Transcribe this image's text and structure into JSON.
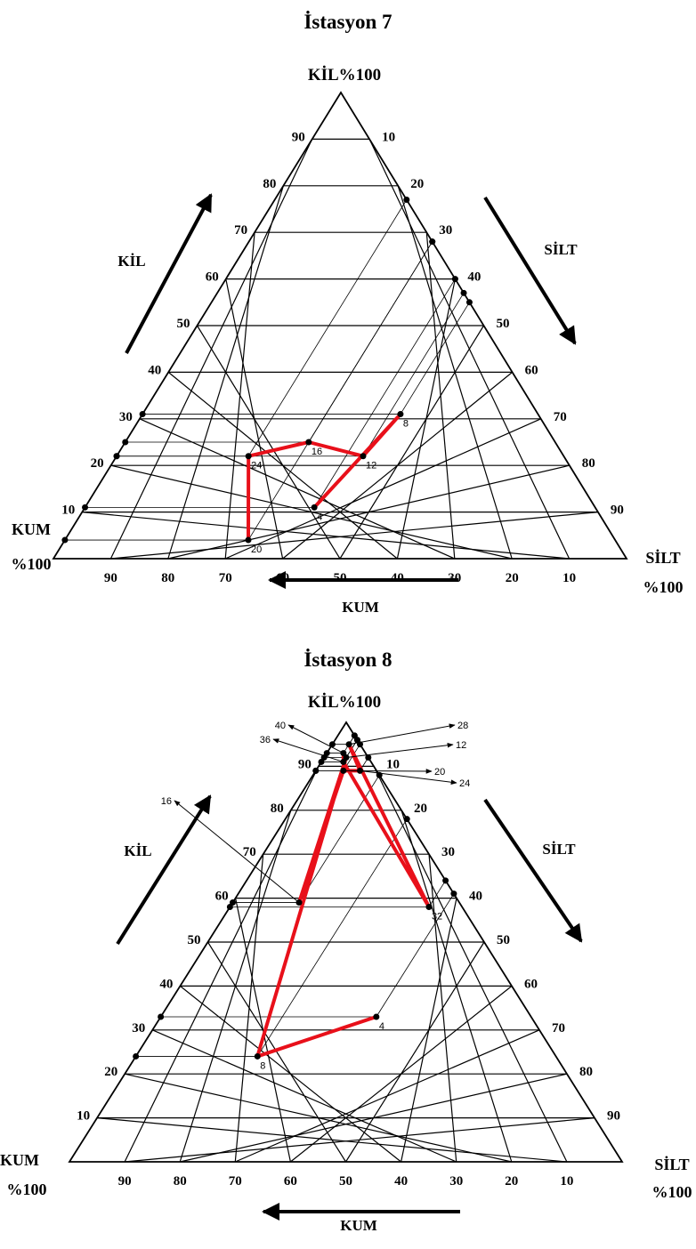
{
  "chart_data": [
    {
      "type": "ternary",
      "title": "İstasyon 7",
      "apex_label": "KİL%100",
      "left_corner_label": [
        "KUM",
        "%100"
      ],
      "right_corner_label": [
        "SİLT",
        "%100"
      ],
      "left_arrow_label": "KİL",
      "right_arrow_label": "SİLT",
      "bottom_arrow_label": "KUM",
      "left_ticks": [
        "90",
        "80",
        "70",
        "60",
        "50",
        "40",
        "30",
        "20",
        "10"
      ],
      "right_ticks": [
        "10",
        "20",
        "30",
        "40",
        "50",
        "60",
        "70",
        "80",
        "90"
      ],
      "bottom_ticks": [
        "90",
        "80",
        "70",
        "60",
        "50",
        "40",
        "30",
        "20",
        "10"
      ],
      "points": [
        {
          "label": "4",
          "kil": 11,
          "silt": 40,
          "kum": 49
        },
        {
          "label": "8",
          "kil": 31,
          "silt": 45,
          "kum": 24
        },
        {
          "label": "12",
          "kil": 22,
          "silt": 43,
          "kum": 35
        },
        {
          "label": "16",
          "kil": 25,
          "silt": 32,
          "kum": 43
        },
        {
          "label": "20",
          "kil": 4,
          "silt": 32,
          "kum": 64
        },
        {
          "label": "24",
          "kil": 22,
          "silt": 23,
          "kum": 55
        }
      ],
      "path_order": [
        "4",
        "8",
        "12",
        "16",
        "24",
        "20"
      ]
    },
    {
      "type": "ternary",
      "title": "İstasyon 8",
      "apex_label": "KİL%100",
      "left_corner_label": [
        "KUM",
        "%100"
      ],
      "right_corner_label": [
        "SİLT",
        "%100"
      ],
      "left_arrow_label": "KİL",
      "right_arrow_label": "SİLT",
      "bottom_arrow_label": "KUM",
      "left_ticks": [
        "90",
        "80",
        "70",
        "60",
        "50",
        "40",
        "30",
        "20",
        "10"
      ],
      "right_ticks": [
        "10",
        "20",
        "30",
        "40",
        "50",
        "60",
        "70",
        "80",
        "90"
      ],
      "bottom_ticks": [
        "90",
        "80",
        "70",
        "60",
        "50",
        "40",
        "30",
        "20",
        "10"
      ],
      "points": [
        {
          "label": "4",
          "kil": 33,
          "silt": 39,
          "kum": 28
        },
        {
          "label": "8",
          "kil": 24,
          "silt": 22,
          "kum": 54
        },
        {
          "label": "12",
          "kil": 92,
          "silt": 4,
          "kum": 4
        },
        {
          "label": "16",
          "kil": 59,
          "silt": 12,
          "kum": 29
        },
        {
          "label": "20",
          "kil": 89,
          "silt": 5,
          "kum": 6
        },
        {
          "label": "24",
          "kil": 89,
          "silt": 8,
          "kum": 3
        },
        {
          "label": "28",
          "kil": 95,
          "silt": 3,
          "kum": 2
        },
        {
          "label": "32",
          "kil": 58,
          "silt": 36,
          "kum": 6
        },
        {
          "label": "36",
          "kil": 91,
          "silt": 4,
          "kum": 5
        },
        {
          "label": "40",
          "kil": 93,
          "silt": 3,
          "kum": 4
        }
      ],
      "path_order": [
        "4",
        "8",
        "12",
        "16",
        "20",
        "24",
        "28",
        "32",
        "36",
        "40"
      ],
      "callouts": [
        "40",
        "36",
        "28",
        "12",
        "20",
        "24",
        "16"
      ]
    }
  ],
  "colors": {
    "path": "#e8101a",
    "grid": "#000000",
    "point": "#000000"
  }
}
